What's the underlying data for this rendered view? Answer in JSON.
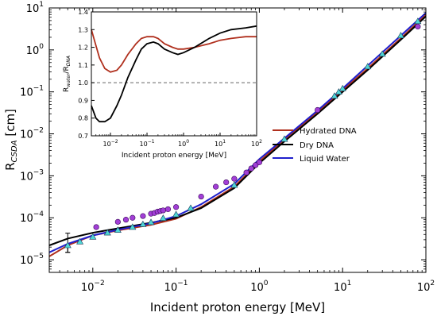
{
  "colors": {
    "hydrated": "#b0301e",
    "dry": "#000000",
    "water": "#1f1fcc",
    "circle_marker": "#a23ed6",
    "triangle_marker": "#4fd6d6",
    "dashed": "#666666"
  },
  "chart_data": [
    {
      "type": "line",
      "title": "",
      "xlabel": "Incident proton energy [MeV]",
      "ylabel_main": "R",
      "ylabel_sub": "CSDA",
      "ylabel_unit": " [cm]",
      "xscale": "log",
      "yscale": "log",
      "xlim": [
        0.003,
        100
      ],
      "ylim": [
        5e-06,
        10
      ],
      "x_ticks": [
        {
          "value": 0.01,
          "mant": "10",
          "exp": "−2"
        },
        {
          "value": 0.1,
          "mant": "10",
          "exp": "−1"
        },
        {
          "value": 1,
          "mant": "10",
          "exp": "0"
        },
        {
          "value": 10,
          "mant": "10",
          "exp": "1"
        },
        {
          "value": 100,
          "mant": "10",
          "exp": "2"
        }
      ],
      "y_ticks": [
        {
          "value": 1e-05,
          "mant": "10",
          "exp": "−5"
        },
        {
          "value": 0.0001,
          "mant": "10",
          "exp": "−4"
        },
        {
          "value": 0.001,
          "mant": "10",
          "exp": "−3"
        },
        {
          "value": 0.01,
          "mant": "10",
          "exp": "−2"
        },
        {
          "value": 0.1,
          "mant": "10",
          "exp": "−1"
        },
        {
          "value": 1,
          "mant": "10",
          "exp": "0"
        },
        {
          "value": 10,
          "mant": "10",
          "exp": "1"
        }
      ],
      "legend_position": "right",
      "series": [
        {
          "name": "Hydrated DNA",
          "color_key": "hydrated",
          "x": [
            0.003,
            0.005,
            0.01,
            0.02,
            0.05,
            0.1,
            0.2,
            0.5,
            1,
            2,
            5,
            10,
            20,
            50,
            100
          ],
          "y": [
            1.2e-05,
            2.2e-05,
            3.8e-05,
            5e-05,
            6.8e-05,
            9.5e-05,
            0.00018,
            0.00055,
            0.0022,
            0.0074,
            0.033,
            0.11,
            0.36,
            1.9,
            6.8
          ]
        },
        {
          "name": "Dry DNA",
          "color_key": "dry",
          "x": [
            0.003,
            0.005,
            0.01,
            0.02,
            0.05,
            0.1,
            0.2,
            0.5,
            1,
            2,
            5,
            10,
            20,
            50,
            100
          ],
          "y": [
            2.2e-05,
            3.2e-05,
            4.4e-05,
            5.6e-05,
            7.6e-05,
            0.0001,
            0.00017,
            0.00051,
            0.002,
            0.0066,
            0.03,
            0.1,
            0.33,
            1.75,
            6.3
          ]
        },
        {
          "name": "Liquid Water",
          "color_key": "water",
          "x": [
            0.003,
            0.005,
            0.01,
            0.02,
            0.05,
            0.1,
            0.2,
            0.5,
            1,
            2,
            5,
            10,
            20,
            50,
            100
          ],
          "y": [
            1.5e-05,
            2.4e-05,
            3.8e-05,
            5.2e-05,
            7.4e-05,
            0.00011,
            0.00021,
            0.00064,
            0.0025,
            0.0078,
            0.036,
            0.12,
            0.42,
            2.2,
            7.6
          ]
        }
      ],
      "markers_circle": {
        "x": [
          0.011,
          0.02,
          0.025,
          0.03,
          0.04,
          0.05,
          0.055,
          0.06,
          0.065,
          0.07,
          0.08,
          0.1,
          0.2,
          0.3,
          0.4,
          0.5,
          0.7,
          0.8,
          0.9,
          1,
          5,
          80
        ],
        "y": [
          6e-05,
          8e-05,
          9e-05,
          0.0001,
          0.00011,
          0.000125,
          0.00013,
          0.00014,
          0.000145,
          0.00015,
          0.00016,
          0.00018,
          0.00032,
          0.00055,
          0.0007,
          0.00085,
          0.0012,
          0.0015,
          0.0018,
          0.0021,
          0.037,
          3.6
        ]
      },
      "markers_triangle": {
        "x": [
          0.005,
          0.007,
          0.01,
          0.015,
          0.02,
          0.03,
          0.04,
          0.05,
          0.07,
          0.1,
          0.15,
          0.5,
          2,
          8,
          9,
          10,
          20,
          30,
          50,
          80
        ],
        "y": [
          2.2e-05,
          2.7e-05,
          3.5e-05,
          4.4e-05,
          5.1e-05,
          6e-05,
          7e-05,
          7.8e-05,
          9.8e-05,
          0.00012,
          0.00017,
          0.0006,
          0.0075,
          0.08,
          0.1,
          0.12,
          0.4,
          0.8,
          2.2,
          4.8
        ]
      },
      "error_bars": [
        {
          "x": 0.005,
          "y": 2.5e-05,
          "ylow": 1.5e-05,
          "yhigh": 4.3e-05
        },
        {
          "x": 0.005,
          "y": 1.8e-05,
          "ylow": 1.5e-05,
          "yhigh": 2.1e-05
        }
      ]
    },
    {
      "type": "line",
      "title": "",
      "xlabel": "Incident proton energy [MeV]",
      "ylabel_main": "R",
      "ylabel_sub1": "water",
      "ylabel_sep": "/R",
      "ylabel_sub2": "DNA",
      "xscale": "log",
      "yscale": "linear",
      "xlim": [
        0.003,
        100
      ],
      "ylim": [
        0.7,
        1.4
      ],
      "x_ticks": [
        {
          "value": 0.01,
          "mant": "10",
          "exp": "−2"
        },
        {
          "value": 0.1,
          "mant": "10",
          "exp": "−1"
        },
        {
          "value": 1,
          "mant": "10",
          "exp": "0"
        },
        {
          "value": 10,
          "mant": "10",
          "exp": "1"
        },
        {
          "value": 100,
          "mant": "10",
          "exp": "2"
        }
      ],
      "y_ticks": [
        {
          "value": 0.7,
          "label": "0.7"
        },
        {
          "value": 0.8,
          "label": "0.8"
        },
        {
          "value": 0.9,
          "label": "0.9"
        },
        {
          "value": 1.0,
          "label": "1.0"
        },
        {
          "value": 1.1,
          "label": "1.1"
        },
        {
          "value": 1.2,
          "label": "1.2"
        },
        {
          "value": 1.3,
          "label": "1.3"
        },
        {
          "value": 1.4,
          "label": "1.4"
        }
      ],
      "reference_line": 1.0,
      "series": [
        {
          "color_key": "hydrated",
          "x": [
            0.003,
            0.004,
            0.005,
            0.007,
            0.01,
            0.015,
            0.02,
            0.03,
            0.05,
            0.07,
            0.1,
            0.15,
            0.2,
            0.3,
            0.5,
            0.7,
            1,
            2,
            5,
            10,
            20,
            50,
            100
          ],
          "y": [
            1.3,
            1.21,
            1.14,
            1.08,
            1.06,
            1.07,
            1.1,
            1.16,
            1.22,
            1.25,
            1.26,
            1.26,
            1.25,
            1.22,
            1.2,
            1.19,
            1.19,
            1.2,
            1.22,
            1.24,
            1.25,
            1.26,
            1.26
          ]
        },
        {
          "color_key": "dry",
          "x": [
            0.003,
            0.004,
            0.005,
            0.007,
            0.01,
            0.015,
            0.02,
            0.03,
            0.05,
            0.07,
            0.1,
            0.15,
            0.2,
            0.3,
            0.5,
            0.7,
            1,
            2,
            5,
            10,
            20,
            50,
            100
          ],
          "y": [
            0.87,
            0.8,
            0.78,
            0.78,
            0.8,
            0.87,
            0.93,
            1.03,
            1.13,
            1.19,
            1.22,
            1.23,
            1.22,
            1.19,
            1.17,
            1.16,
            1.17,
            1.2,
            1.25,
            1.28,
            1.3,
            1.31,
            1.32
          ]
        }
      ]
    }
  ]
}
